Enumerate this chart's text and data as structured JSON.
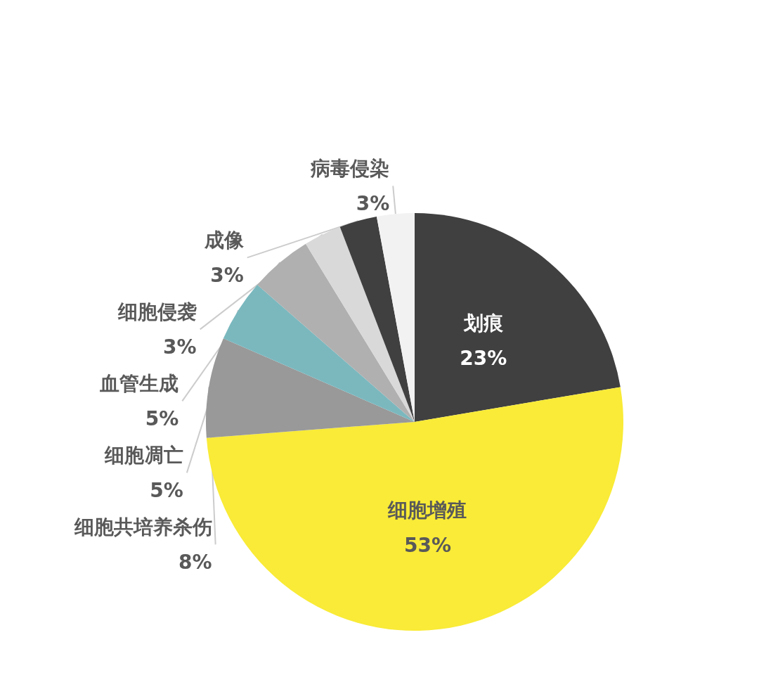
{
  "chart_data": {
    "type": "pie",
    "categories": [
      "划痕",
      "细胞增殖",
      "细胞共培养杀伤",
      "细胞凋亡",
      "血管生成",
      "细胞侵袭",
      "成像",
      "病毒侵染"
    ],
    "values": [
      23,
      53,
      8,
      5,
      5,
      3,
      3,
      3
    ],
    "value_labels": [
      "23%",
      "53%",
      "8%",
      "5%",
      "5%",
      "3%",
      "3%",
      "3%"
    ],
    "colors": [
      "#404040",
      "#f9eb37",
      "#999999",
      "#7ab8be",
      "#b0b0b0",
      "#d9d9d9",
      "#404040",
      "#f2f2f2"
    ],
    "legend": false
  }
}
